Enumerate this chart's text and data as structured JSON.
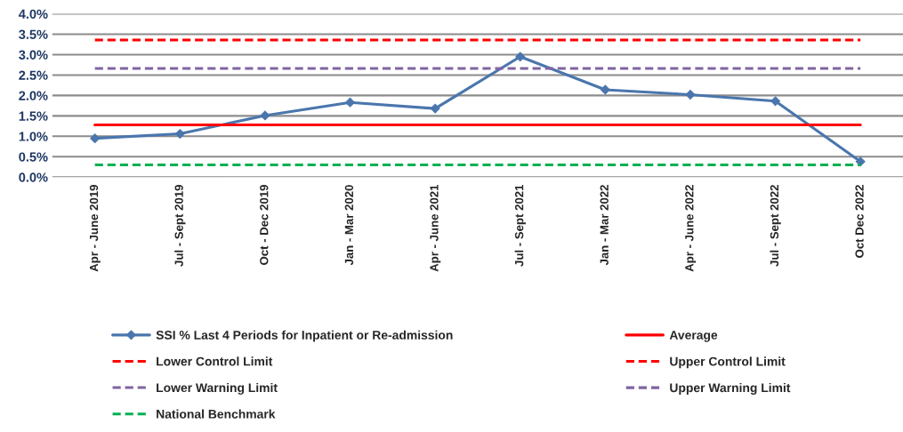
{
  "chart_data": {
    "type": "line",
    "categories": [
      "Apr - June 2019",
      "Jul - Sept 2019",
      "Oct - Dec 2019",
      "Jan - Mar 2020",
      "Apr - June 2021",
      "Jul - Sept 2021",
      "Jan - Mar 2022",
      "Apr - June 2022",
      "Jul - Sept 2022",
      "Oct Dec 2022"
    ],
    "series": [
      {
        "name": "SSI % Last 4 Periods for Inpatient or Re-admission",
        "color": "#4a76ad",
        "marker": "diamond",
        "line_style": "solid",
        "values": [
          0.95,
          1.06,
          1.51,
          1.83,
          1.68,
          2.95,
          2.14,
          2.02,
          1.86,
          0.38
        ]
      },
      {
        "name": "Average",
        "color": "#ff0000",
        "marker": "none",
        "line_style": "solid",
        "values": [
          1.28,
          1.28,
          1.28,
          1.28,
          1.28,
          1.28,
          1.28,
          1.28,
          1.28,
          1.28
        ]
      },
      {
        "name": "Lower Control Limit",
        "color": "#ff0000",
        "marker": "none",
        "line_style": "dashed",
        "values": [
          null,
          null,
          null,
          null,
          null,
          null,
          null,
          null,
          null,
          null
        ]
      },
      {
        "name": "Upper Control Limit",
        "color": "#ff0000",
        "marker": "none",
        "line_style": "dashed",
        "values": [
          3.36,
          3.36,
          3.36,
          3.36,
          3.36,
          3.36,
          3.36,
          3.36,
          3.36,
          3.36
        ]
      },
      {
        "name": "Lower Warning Limit",
        "color": "#8064a2",
        "marker": "none",
        "line_style": "dashed",
        "values": [
          null,
          null,
          null,
          null,
          null,
          null,
          null,
          null,
          null,
          null
        ]
      },
      {
        "name": "Upper Warning Limit",
        "color": "#8064a2",
        "marker": "none",
        "line_style": "dashed",
        "values": [
          2.66,
          2.66,
          2.66,
          2.66,
          2.66,
          2.66,
          2.66,
          2.66,
          2.66,
          2.66
        ]
      },
      {
        "name": "National Benchmark",
        "color": "#00b050",
        "marker": "none",
        "line_style": "dashed",
        "values": [
          0.3,
          0.3,
          0.3,
          0.3,
          0.3,
          0.3,
          0.3,
          0.3,
          0.3,
          0.3
        ]
      }
    ],
    "ylim": [
      0,
      4
    ],
    "yticks": [
      {
        "value": 0,
        "label": "0.0%"
      },
      {
        "value": 0.5,
        "label": "0.5%"
      },
      {
        "value": 1,
        "label": "1.0%"
      },
      {
        "value": 1.5,
        "label": "1.5%"
      },
      {
        "value": 2,
        "label": "2.0%"
      },
      {
        "value": 2.5,
        "label": "2.5%"
      },
      {
        "value": 3,
        "label": "3.0%"
      },
      {
        "value": 3.5,
        "label": "3.5%"
      },
      {
        "value": 4,
        "label": "4.0%"
      }
    ],
    "grid": "y",
    "legend": "bottom"
  }
}
